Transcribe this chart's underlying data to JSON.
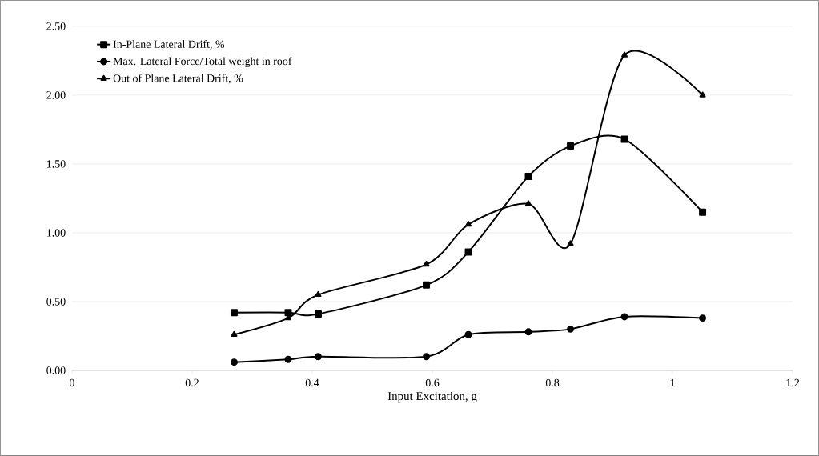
{
  "chart_data": {
    "type": "line",
    "xlabel": "Input Excitation, g",
    "x": [
      0.27,
      0.36,
      0.41,
      0.59,
      0.66,
      0.76,
      0.83,
      0.92,
      1.05
    ],
    "series": [
      {
        "name": "In-Plane Lateral Drift, %",
        "color": "#000000",
        "marker": "square",
        "values": [
          0.42,
          0.42,
          0.41,
          0.62,
          0.86,
          1.41,
          1.63,
          1.68,
          1.15
        ]
      },
      {
        "name": "Max. Lateral Force/Total weight in roof",
        "color": "#000000",
        "marker": "circle",
        "values": [
          0.06,
          0.08,
          0.1,
          0.1,
          0.26,
          0.28,
          0.3,
          0.39,
          0.38
        ]
      },
      {
        "name": "Out of Plane Lateral Drift, %",
        "color": "#000000",
        "marker": "triangle",
        "values": [
          0.26,
          0.38,
          0.55,
          0.77,
          1.06,
          1.21,
          0.92,
          2.29,
          2.0
        ]
      }
    ],
    "xlim": [
      0,
      1.2
    ],
    "xticks": [
      0,
      0.2,
      0.4,
      0.6,
      0.8,
      1,
      1.2
    ],
    "ylim": [
      0,
      2.5
    ],
    "yticks": [
      {
        "value": 0,
        "label": "0.00"
      },
      {
        "value": 0.5,
        "label": "0.50"
      },
      {
        "value": 1,
        "label": "1.00"
      },
      {
        "value": 1.5,
        "label": "1.50"
      },
      {
        "value": 2,
        "label": "2.00"
      },
      {
        "value": 2.5,
        "label": "2.50"
      }
    ],
    "grid": "y",
    "legend": "top left",
    "line_style": "solid"
  }
}
